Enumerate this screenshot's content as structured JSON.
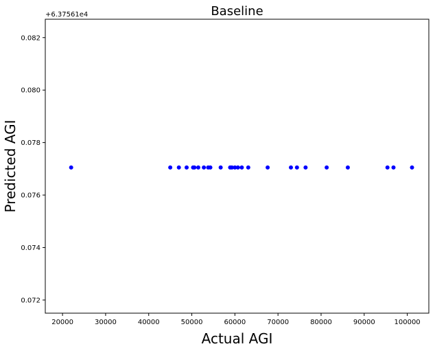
{
  "chart_data": {
    "type": "scatter",
    "title": "Baseline",
    "xlabel": "Actual AGI",
    "ylabel": "Predicted AGI",
    "y_offset_label": "+6.37561e4",
    "xlim": [
      16000,
      105000
    ],
    "ylim": [
      0.0715,
      0.0827
    ],
    "xticks": [
      20000,
      30000,
      40000,
      50000,
      60000,
      70000,
      80000,
      90000,
      100000
    ],
    "xtick_labels": [
      "20000",
      "30000",
      "40000",
      "50000",
      "60000",
      "70000",
      "80000",
      "90000",
      "100000"
    ],
    "yticks": [
      0.072,
      0.074,
      0.076,
      0.078,
      0.08,
      0.082
    ],
    "ytick_labels": [
      "0.072",
      "0.074",
      "0.076",
      "0.078",
      "0.080",
      "0.082"
    ],
    "grid": false,
    "marker_color": "#0000ff",
    "series": [
      {
        "x": [
          22000,
          45000,
          47000,
          48800,
          50300,
          50600,
          51500,
          52800,
          53800,
          54300,
          56700,
          58900,
          59300,
          60000,
          60700,
          61600,
          63100,
          67600,
          73000,
          74400,
          76400,
          81300,
          86200,
          95400,
          96800,
          101100
        ],
        "y": [
          0.07705,
          0.07705,
          0.07705,
          0.07705,
          0.07705,
          0.07705,
          0.07705,
          0.07705,
          0.07705,
          0.07705,
          0.07705,
          0.07705,
          0.07705,
          0.07705,
          0.07705,
          0.07705,
          0.07705,
          0.07705,
          0.07705,
          0.07705,
          0.07705,
          0.07705,
          0.07705,
          0.07705,
          0.07705,
          0.07705
        ]
      }
    ]
  }
}
